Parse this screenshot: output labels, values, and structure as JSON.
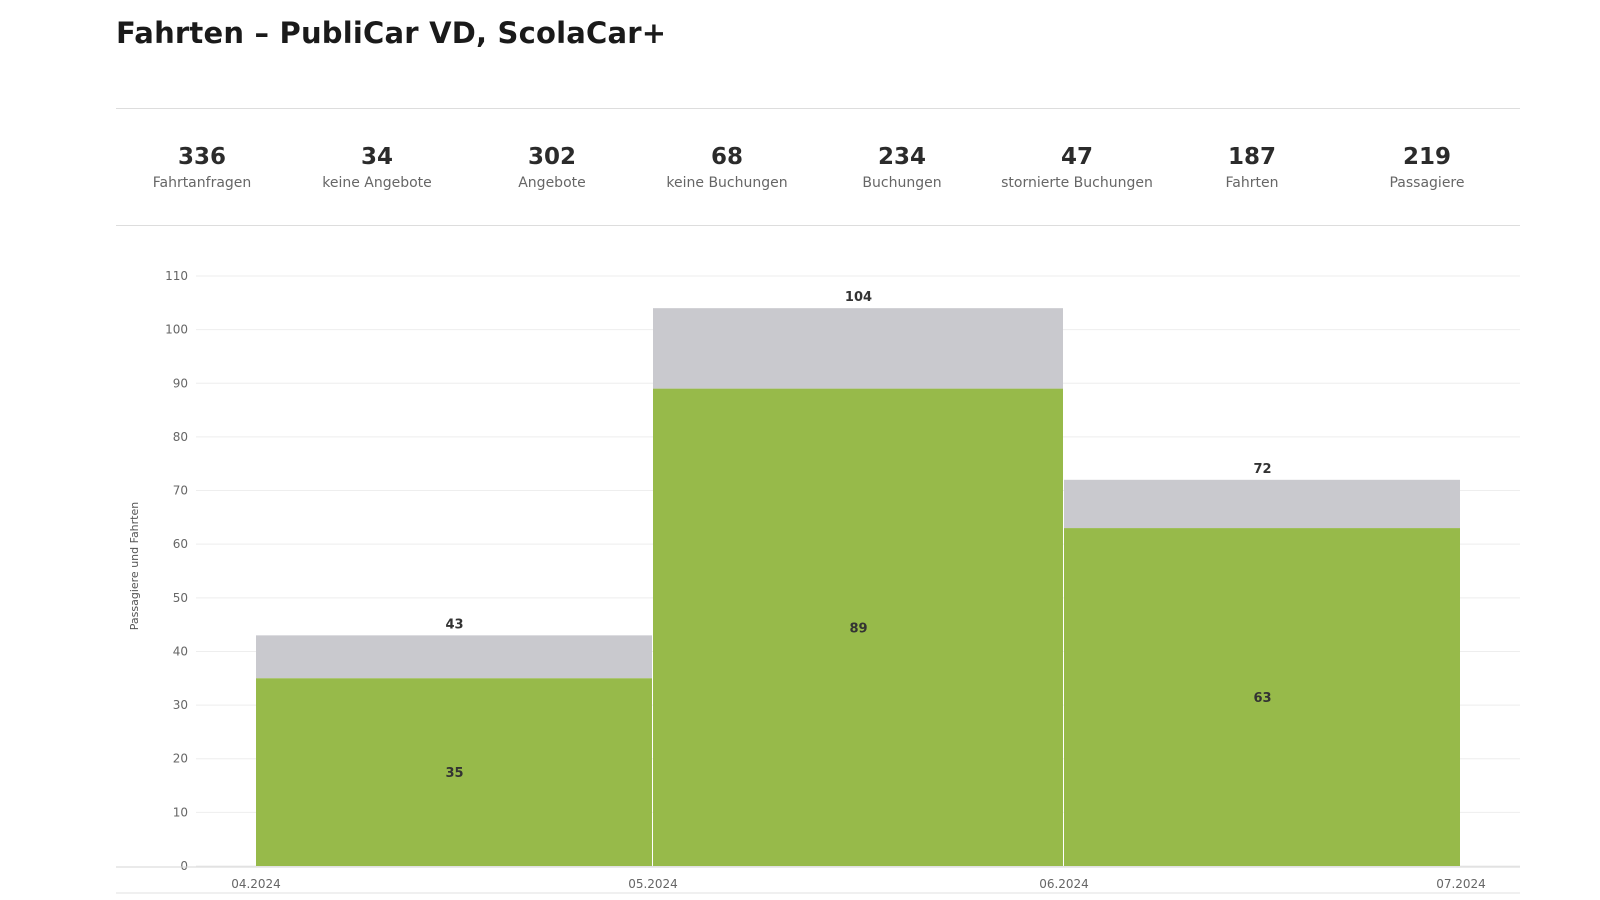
{
  "title": "Fahrten – PubliCar VD, ScolaCar+",
  "kpis": [
    {
      "value": "336",
      "label": "Fahrtanfragen"
    },
    {
      "value": "34",
      "label": "keine Angebote"
    },
    {
      "value": "302",
      "label": "Angebote"
    },
    {
      "value": "68",
      "label": "keine Buchungen"
    },
    {
      "value": "234",
      "label": "Buchungen"
    },
    {
      "value": "47",
      "label": "stornierte Buchungen"
    },
    {
      "value": "187",
      "label": "Fahrten"
    },
    {
      "value": "219",
      "label": "Passagiere"
    }
  ],
  "chart_data": {
    "type": "bar",
    "stacked": true,
    "ylabel": "Passagiere und Fahrten",
    "xlabel": "",
    "ylim": [
      0,
      110
    ],
    "yticks": [
      0,
      10,
      20,
      30,
      40,
      50,
      60,
      70,
      80,
      90,
      100,
      110
    ],
    "x_ticks": [
      "04.2024",
      "05.2024",
      "06.2024",
      "07.2024"
    ],
    "bins": [
      {
        "start": "04.2024",
        "end": "05.2024",
        "lower": 35,
        "total": 43
      },
      {
        "start": "05.2024",
        "end": "06.2024",
        "lower": 89,
        "total": 104
      },
      {
        "start": "06.2024",
        "end": "07.2024",
        "lower": 63,
        "total": 72
      }
    ],
    "colors": {
      "lower": "#97ba4a",
      "upper": "#c9c9ce",
      "grid": "#eeeeee"
    },
    "grid": true
  }
}
